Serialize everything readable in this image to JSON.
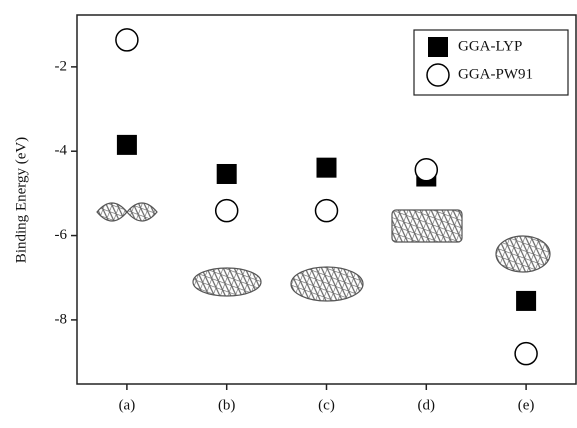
{
  "chart_data": {
    "type": "scatter",
    "y_label": "Binding Energy (eV)",
    "categories": [
      "(a)",
      "(b)",
      "(c)",
      "(d)",
      "(e)"
    ],
    "series": [
      {
        "name": "GGA-LYP",
        "marker": "square",
        "color": "#000000",
        "values": [
          -3.85,
          -4.54,
          -4.39,
          -4.6,
          -7.55
        ]
      },
      {
        "name": "GGA-PW91",
        "marker": "circle",
        "color": "#000000",
        "values": [
          -1.36,
          -5.41,
          -5.41,
          -4.44,
          -8.8
        ]
      }
    ],
    "ylim": [
      -9.52,
      -0.77
    ],
    "yticks": [
      -8,
      -6,
      -4,
      -2
    ],
    "legend": "upper right"
  }
}
